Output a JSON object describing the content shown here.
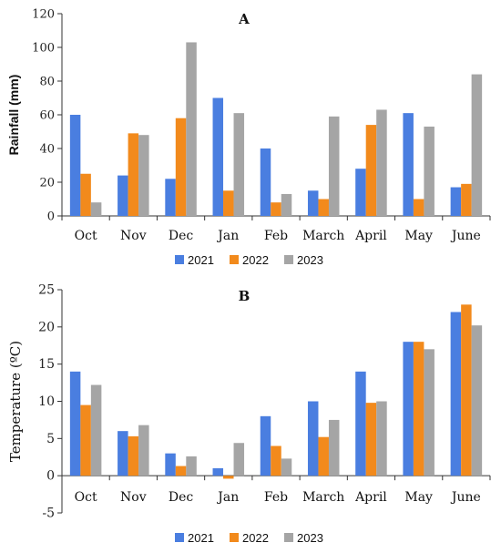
{
  "colors": {
    "2021": "#4a7ee0",
    "2022": "#f28a1c",
    "2023": "#a5a5a5"
  },
  "chart_data": [
    {
      "type": "bar",
      "panel_label": "A",
      "ylabel": "Rainfall (mm)",
      "ylim": [
        0,
        120
      ],
      "yticks": [
        0,
        20,
        40,
        60,
        80,
        100,
        120
      ],
      "categories": [
        "Oct",
        "Nov",
        "Dec",
        "Jan",
        "Feb",
        "March",
        "April",
        "May",
        "June"
      ],
      "series": [
        {
          "name": "2021",
          "values": [
            60,
            24,
            22,
            70,
            40,
            15,
            28,
            61,
            17
          ]
        },
        {
          "name": "2022",
          "values": [
            25,
            49,
            58,
            15,
            8,
            10,
            54,
            10,
            19
          ]
        },
        {
          "name": "2023",
          "values": [
            8,
            48,
            103,
            61,
            13,
            59,
            63,
            53,
            84
          ]
        }
      ],
      "legend": "bottom"
    },
    {
      "type": "bar",
      "panel_label": "B",
      "ylabel": "Temperature (ºC)",
      "ylim": [
        -5,
        25
      ],
      "yticks": [
        -5,
        0,
        5,
        10,
        15,
        20,
        25
      ],
      "categories": [
        "Oct",
        "Nov",
        "Dec",
        "Jan",
        "Feb",
        "March",
        "April",
        "May",
        "June"
      ],
      "series": [
        {
          "name": "2021",
          "values": [
            14,
            6,
            3,
            1,
            8,
            10,
            14,
            18,
            22
          ]
        },
        {
          "name": "2022",
          "values": [
            9.5,
            5.3,
            1.3,
            -0.4,
            4,
            5.2,
            9.8,
            18,
            23
          ]
        },
        {
          "name": "2023",
          "values": [
            12.2,
            6.8,
            2.6,
            4.4,
            2.3,
            7.5,
            10,
            17,
            20.2
          ]
        }
      ],
      "legend": "bottom"
    }
  ]
}
